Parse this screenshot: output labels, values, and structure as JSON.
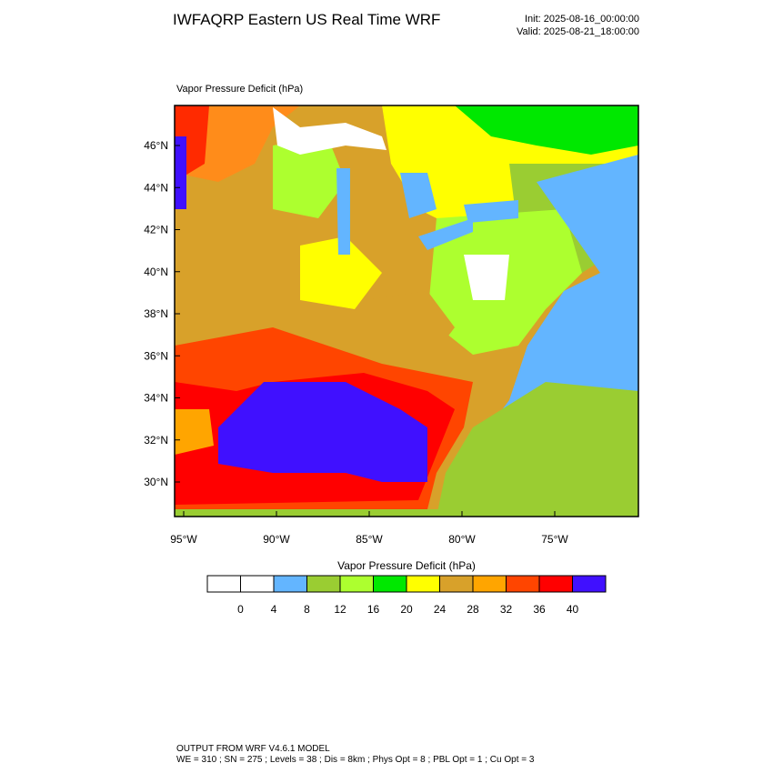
{
  "header": {
    "title": "IWFAQRP Eastern US Real Time WRF",
    "init": "Init: 2025-08-16_00:00:00",
    "valid": "Valid: 2025-08-21_18:00:00"
  },
  "map": {
    "title": "Vapor Pressure Deficit   (hPa)",
    "lat_labels": [
      "46°N",
      "44°N",
      "42°N",
      "40°N",
      "38°N",
      "36°N",
      "34°N",
      "32°N",
      "30°N"
    ],
    "lon_labels": [
      "95°W",
      "90°W",
      "85°W",
      "80°W",
      "75°W"
    ]
  },
  "colorbar": {
    "title": "Vapor Pressure Deficit  (hPa)",
    "colors": [
      "#ffffff",
      "#ffffff",
      "#63b5ff",
      "#9acd32",
      "#adff2f",
      "#00e800",
      "#ffff00",
      "#d8a12a",
      "#ffa500",
      "#ff4500",
      "#ff0000",
      "#4010ff"
    ],
    "levels": [
      0,
      4,
      8,
      12,
      16,
      20,
      24,
      28,
      32,
      36,
      40
    ]
  },
  "footer": {
    "line1": "OUTPUT FROM WRF V4.6.1 MODEL",
    "line2": "WE = 310 ; SN = 275 ; Levels = 38 ; Dis = 8km ; Phys Opt = 8 ; PBL Opt = 1 ; Cu Opt = 3"
  }
}
